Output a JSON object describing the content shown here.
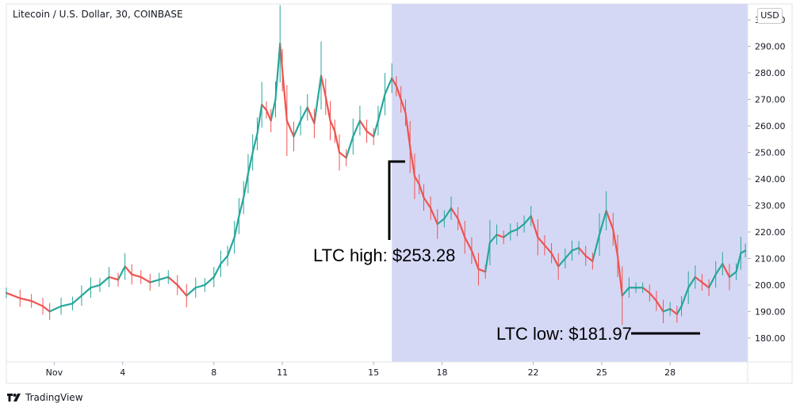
{
  "header": {
    "symbol_label": "Litecoin / U.S. Dollar, 30, COINBASE",
    "currency": "USD"
  },
  "footer": {
    "brand": "TradingView"
  },
  "colors": {
    "up": "#26a69a",
    "down": "#ef5350",
    "highlight": "#d5d8f5",
    "annotation": "#000000"
  },
  "chart_data": {
    "type": "line",
    "title": "Litecoin / U.S. Dollar, 30, COINBASE",
    "xlabel": "",
    "ylabel": "",
    "ylim": [
      171,
      306
    ],
    "xlim": [
      -2.1,
      30.4
    ],
    "x_axis": "days since Nov 1",
    "x_ticks": [
      {
        "label": "Nov",
        "x": 0
      },
      {
        "label": "4",
        "x": 3
      },
      {
        "label": "8",
        "x": 7
      },
      {
        "label": "11",
        "x": 10
      },
      {
        "label": "15",
        "x": 14
      },
      {
        "label": "18",
        "x": 17
      },
      {
        "label": "22",
        "x": 21
      },
      {
        "label": "25",
        "x": 24
      },
      {
        "label": "28",
        "x": 27
      }
    ],
    "y_ticks": [
      180,
      190,
      200,
      210,
      220,
      230,
      240,
      250,
      260,
      270,
      280,
      290,
      300
    ],
    "y_tick_labels": [
      "180.00",
      "190.00",
      "200.00",
      "210.00",
      "220.00",
      "230.00",
      "240.00",
      "250.00",
      "260.00",
      "270.00",
      "280.00",
      "290.00",
      "300.00"
    ],
    "highlight_range": {
      "x_start": 14.8,
      "x_end": 30.4
    },
    "series": [
      {
        "values": [
          [
            -2.1,
            197
          ],
          [
            -1.5,
            195
          ],
          [
            -1.0,
            194
          ],
          [
            -0.5,
            192
          ],
          [
            -0.2,
            190
          ],
          [
            0.3,
            192
          ],
          [
            0.8,
            193
          ],
          [
            1.2,
            196
          ],
          [
            1.6,
            199
          ],
          [
            2.0,
            200
          ],
          [
            2.4,
            203
          ],
          [
            2.8,
            202
          ],
          [
            3.1,
            207
          ],
          [
            3.4,
            204
          ],
          [
            3.8,
            203
          ],
          [
            4.2,
            201
          ],
          [
            4.6,
            202
          ],
          [
            5.0,
            203
          ],
          [
            5.4,
            200
          ],
          [
            5.8,
            196
          ],
          [
            6.2,
            199
          ],
          [
            6.6,
            200
          ],
          [
            7.0,
            203
          ],
          [
            7.3,
            208
          ],
          [
            7.6,
            211
          ],
          [
            7.9,
            218
          ],
          [
            8.1,
            226
          ],
          [
            8.3,
            233
          ],
          [
            8.5,
            242
          ],
          [
            8.7,
            250
          ],
          [
            8.9,
            257
          ],
          [
            9.1,
            268
          ],
          [
            9.3,
            266
          ],
          [
            9.5,
            262
          ],
          [
            9.7,
            270
          ],
          [
            9.9,
            291
          ],
          [
            10.0,
            281
          ],
          [
            10.2,
            262
          ],
          [
            10.5,
            256
          ],
          [
            10.8,
            262
          ],
          [
            11.1,
            267
          ],
          [
            11.4,
            261
          ],
          [
            11.7,
            279
          ],
          [
            11.9,
            271
          ],
          [
            12.1,
            262
          ],
          [
            12.3,
            258
          ],
          [
            12.5,
            250
          ],
          [
            12.8,
            248
          ],
          [
            13.1,
            256
          ],
          [
            13.4,
            262
          ],
          [
            13.7,
            258
          ],
          [
            14.0,
            256
          ],
          [
            14.2,
            262
          ],
          [
            14.5,
            272
          ],
          [
            14.8,
            278
          ],
          [
            15.0,
            275
          ],
          [
            15.2,
            270
          ],
          [
            15.4,
            265
          ],
          [
            15.6,
            252
          ],
          [
            15.8,
            241
          ],
          [
            16.0,
            238
          ],
          [
            16.2,
            233
          ],
          [
            16.5,
            229
          ],
          [
            16.8,
            223
          ],
          [
            17.1,
            225
          ],
          [
            17.4,
            229
          ],
          [
            17.7,
            225
          ],
          [
            18.0,
            218
          ],
          [
            18.3,
            213
          ],
          [
            18.6,
            206
          ],
          [
            18.9,
            205
          ],
          [
            19.1,
            216
          ],
          [
            19.4,
            219
          ],
          [
            19.7,
            218
          ],
          [
            20.0,
            220
          ],
          [
            20.3,
            221
          ],
          [
            20.6,
            223
          ],
          [
            20.9,
            226
          ],
          [
            21.2,
            218
          ],
          [
            21.5,
            215
          ],
          [
            21.8,
            212
          ],
          [
            22.1,
            207
          ],
          [
            22.4,
            210
          ],
          [
            22.7,
            213
          ],
          [
            23.0,
            214
          ],
          [
            23.3,
            211
          ],
          [
            23.6,
            209
          ],
          [
            23.9,
            219
          ],
          [
            24.2,
            228
          ],
          [
            24.5,
            221
          ],
          [
            24.7,
            211
          ],
          [
            24.9,
            196
          ],
          [
            25.2,
            199
          ],
          [
            25.5,
            199
          ],
          [
            25.8,
            199
          ],
          [
            26.1,
            197
          ],
          [
            26.4,
            194
          ],
          [
            26.7,
            190
          ],
          [
            27.0,
            191
          ],
          [
            27.3,
            189
          ],
          [
            27.5,
            192
          ],
          [
            27.8,
            199
          ],
          [
            28.1,
            203
          ],
          [
            28.4,
            201
          ],
          [
            28.7,
            199
          ],
          [
            29.0,
            204
          ],
          [
            29.3,
            208
          ],
          [
            29.6,
            203
          ],
          [
            29.9,
            205
          ],
          [
            30.1,
            212
          ],
          [
            30.3,
            213
          ]
        ]
      }
    ],
    "annotations": [
      {
        "text": "LTC high: $253.28"
      },
      {
        "text": "LTC low: $181.97"
      }
    ]
  }
}
